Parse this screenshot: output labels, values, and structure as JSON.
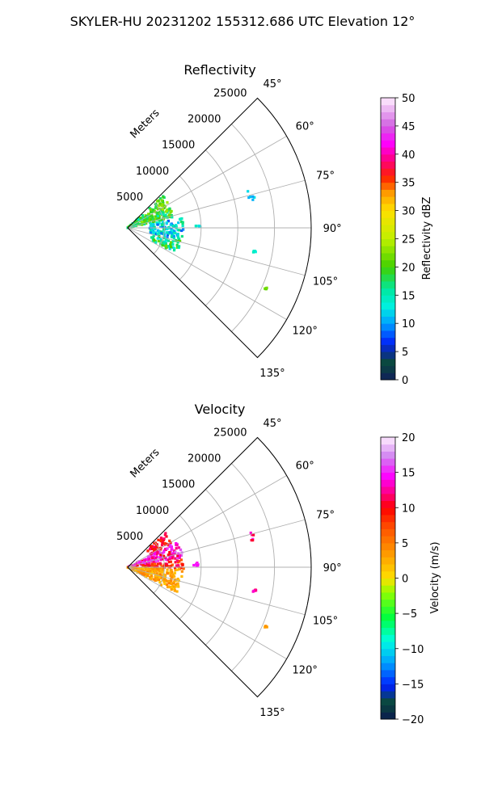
{
  "figure": {
    "suptitle": "SKYLER-HU  20231202  155312.686 UTC Elevation 12°"
  },
  "chart_data": [
    {
      "type": "polar_sector_scan",
      "title": "Reflectivity",
      "range_label": "Meters",
      "range_ticks": [
        5000,
        10000,
        15000,
        20000,
        25000
      ],
      "range_tick_labels": [
        "5000",
        "10000",
        "15000",
        "20000",
        "25000"
      ],
      "r_max": 25000,
      "azimuth_range_deg": [
        45,
        135
      ],
      "azimuth_ticks_deg": [
        45,
        60,
        75,
        90,
        105,
        120,
        135
      ],
      "azimuth_tick_labels": [
        "45°",
        "60°",
        "75°",
        "90°",
        "105°",
        "120°",
        "135°"
      ],
      "grid": true,
      "colorbar": {
        "label": "Reflectivity dBZ",
        "min": 0,
        "max": 50,
        "ticks": [
          0,
          5,
          10,
          15,
          20,
          25,
          30,
          35,
          40,
          45,
          50
        ],
        "tick_labels": [
          "0",
          "5",
          "10",
          "15",
          "20",
          "25",
          "30",
          "35",
          "40",
          "45",
          "50"
        ]
      },
      "echo_regions": [
        {
          "az": [
            48,
            78
          ],
          "r": [
            0,
            6500
          ],
          "value_range": [
            15,
            24
          ]
        },
        {
          "az": [
            80,
            103
          ],
          "r": [
            3000,
            7700
          ],
          "value_range": [
            8,
            18
          ]
        },
        {
          "az": [
            104,
            118
          ],
          "r": [
            3500,
            7500
          ],
          "value_range": [
            12,
            22
          ]
        },
        {
          "az": [
            86,
            90
          ],
          "r": [
            9000,
            9900
          ],
          "value_range": [
            12,
            15
          ]
        },
        {
          "az": [
            73,
            78
          ],
          "r": [
            17000,
            17900
          ],
          "value_range": [
            10,
            14
          ]
        },
        {
          "az": [
            100,
            101
          ],
          "r": [
            17400,
            17800
          ],
          "value_range": [
            13,
            15
          ]
        },
        {
          "az": [
            113,
            114
          ],
          "r": [
            20400,
            20700
          ],
          "value_range": [
            20,
            24
          ]
        }
      ]
    },
    {
      "type": "polar_sector_scan",
      "title": "Velocity",
      "range_label": "Meters",
      "range_ticks": [
        5000,
        10000,
        15000,
        20000,
        25000
      ],
      "range_tick_labels": [
        "5000",
        "10000",
        "15000",
        "20000",
        "25000"
      ],
      "r_max": 25000,
      "azimuth_range_deg": [
        45,
        135
      ],
      "azimuth_ticks_deg": [
        45,
        60,
        75,
        90,
        105,
        120,
        135
      ],
      "azimuth_tick_labels": [
        "45°",
        "60°",
        "75°",
        "90°",
        "105°",
        "120°",
        "135°"
      ],
      "grid": true,
      "colorbar": {
        "label": "Velocity (m/s)",
        "min": -20,
        "max": 20,
        "ticks": [
          -20,
          -15,
          -10,
          -5,
          0,
          5,
          10,
          15,
          20
        ],
        "tick_labels": [
          "−20",
          "−15",
          "−10",
          "−5",
          "0",
          "5",
          "10",
          "15",
          "20"
        ]
      },
      "echo_regions": [
        {
          "az": [
            48,
            62
          ],
          "r": [
            3500,
            7000
          ],
          "value_range": [
            8,
            12
          ]
        },
        {
          "az": [
            62,
            80
          ],
          "r": [
            0,
            7800
          ],
          "value_range": [
            10,
            17
          ]
        },
        {
          "az": [
            82,
            92
          ],
          "r": [
            2000,
            7800
          ],
          "value_range": [
            6,
            12
          ]
        },
        {
          "az": [
            92,
            118
          ],
          "r": [
            0,
            7500
          ],
          "value_range": [
            1,
            5
          ]
        },
        {
          "az": [
            86,
            90
          ],
          "r": [
            9000,
            9900
          ],
          "value_range": [
            13,
            16
          ]
        },
        {
          "az": [
            73,
            78
          ],
          "r": [
            17000,
            17900
          ],
          "value_range": [
            10,
            17
          ]
        },
        {
          "az": [
            100,
            101
          ],
          "r": [
            17400,
            17800
          ],
          "value_range": [
            11,
            14
          ]
        },
        {
          "az": [
            113,
            114
          ],
          "r": [
            20400,
            20700
          ],
          "value_range": [
            1,
            4
          ]
        }
      ]
    }
  ]
}
